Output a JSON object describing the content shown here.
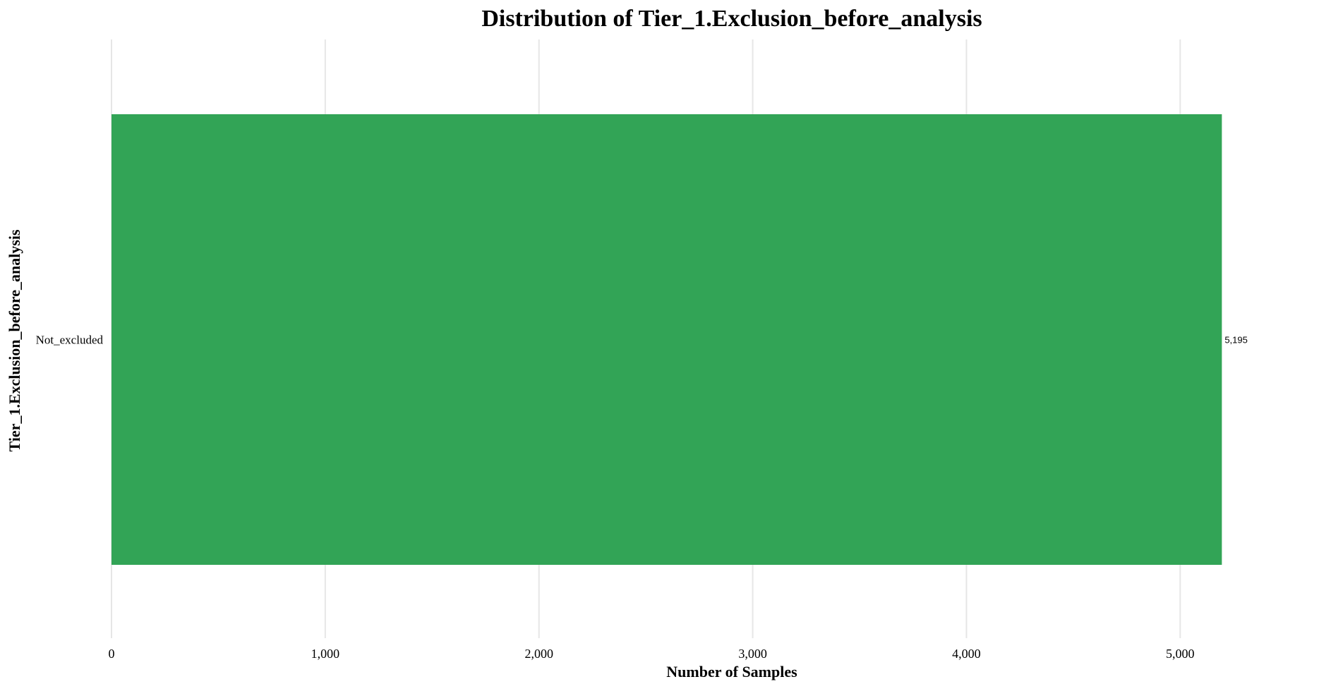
{
  "chart_data": {
    "type": "bar",
    "orientation": "horizontal",
    "title": "Distribution of Tier_1.Exclusion_before_analysis",
    "xlabel": "Number of Samples",
    "ylabel": "Tier_1.Exclusion_before_analysis",
    "categories": [
      "Not_excluded"
    ],
    "values": [
      5195
    ],
    "value_labels": [
      "5,195"
    ],
    "xlim": [
      0,
      5600
    ],
    "xticks": [
      0,
      1000,
      2000,
      3000,
      4000,
      5000
    ],
    "xtick_labels": [
      "0",
      "1,000",
      "2,000",
      "3,000",
      "4,000",
      "5,000"
    ],
    "bar_color": "#32a456",
    "grid": "vertical",
    "legend": "none"
  }
}
